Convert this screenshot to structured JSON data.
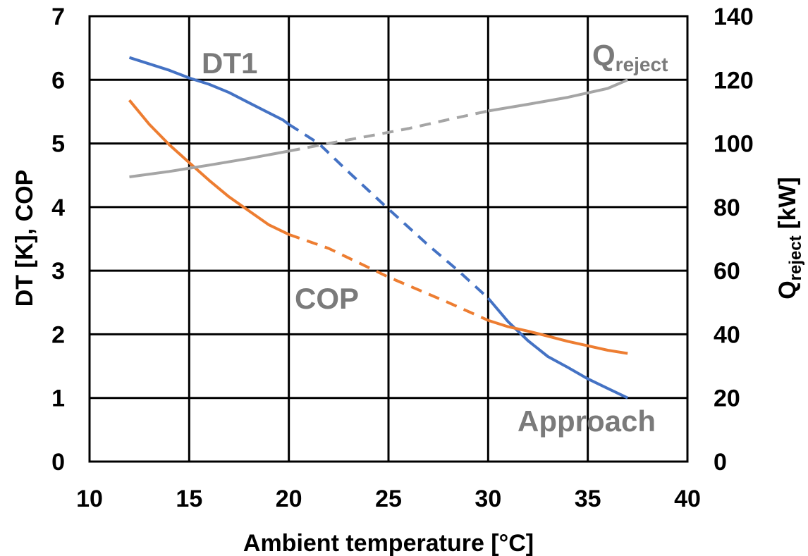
{
  "chart_data": {
    "type": "line",
    "xlabel": "Ambient temperature [°C]",
    "ylabel": "DT [K], COP",
    "y2label_main": "Q",
    "y2label_sub": "reject",
    "y2label_unit": " [kW]",
    "xlim": [
      10,
      40
    ],
    "ylim": [
      0,
      7
    ],
    "y2lim": [
      0,
      140
    ],
    "x_ticks": [
      10,
      15,
      20,
      25,
      30,
      35,
      40
    ],
    "y_ticks": [
      0,
      1,
      2,
      3,
      4,
      5,
      6,
      7
    ],
    "y2_ticks": [
      0,
      20,
      40,
      60,
      80,
      100,
      120,
      140
    ],
    "grid": true,
    "colors": {
      "blue": "#4472c4",
      "orange": "#ed7d31",
      "gray": "#a5a5a5",
      "annotation": "#7a7a7a"
    },
    "annotations": {
      "dt1": "DT1",
      "cop": "COP",
      "approach": "Approach",
      "qreject_main": "Q",
      "qreject_sub": "reject"
    },
    "series": [
      {
        "key": "dt1_approach",
        "axis": "left",
        "color": "#4472c4",
        "segments": [
          {
            "style": "solid",
            "points": [
              [
                12,
                6.35
              ],
              [
                13,
                6.25
              ],
              [
                14,
                6.15
              ],
              [
                15,
                6.03
              ],
              [
                16,
                5.93
              ],
              [
                17,
                5.8
              ],
              [
                18,
                5.64
              ],
              [
                19,
                5.48
              ],
              [
                19.7,
                5.37
              ],
              [
                20,
                5.3
              ]
            ]
          },
          {
            "style": "dashed",
            "points": [
              [
                20,
                5.3
              ],
              [
                21.5,
                5.0
              ],
              [
                23,
                4.55
              ],
              [
                25,
                3.97
              ],
              [
                27,
                3.4
              ],
              [
                28.5,
                3.0
              ],
              [
                30,
                2.57
              ]
            ]
          },
          {
            "style": "solid",
            "points": [
              [
                30,
                2.57
              ],
              [
                31,
                2.2
              ],
              [
                32,
                1.9
              ],
              [
                33,
                1.65
              ],
              [
                34,
                1.48
              ],
              [
                35,
                1.3
              ],
              [
                36,
                1.15
              ],
              [
                37,
                1.0
              ]
            ]
          }
        ]
      },
      {
        "key": "cop",
        "axis": "left",
        "color": "#ed7d31",
        "segments": [
          {
            "style": "solid",
            "points": [
              [
                12,
                5.68
              ],
              [
                13,
                5.3
              ],
              [
                14,
                4.98
              ],
              [
                15,
                4.7
              ],
              [
                16,
                4.42
              ],
              [
                17,
                4.16
              ],
              [
                18,
                3.94
              ],
              [
                19,
                3.72
              ],
              [
                20,
                3.57
              ]
            ]
          },
          {
            "style": "dashed",
            "points": [
              [
                20,
                3.57
              ],
              [
                22,
                3.35
              ],
              [
                25,
                2.9
              ],
              [
                28,
                2.5
              ],
              [
                30,
                2.22
              ]
            ]
          },
          {
            "style": "solid",
            "points": [
              [
                30,
                2.22
              ],
              [
                31,
                2.12
              ],
              [
                32,
                2.05
              ],
              [
                33,
                1.97
              ],
              [
                34,
                1.89
              ],
              [
                35,
                1.82
              ],
              [
                36,
                1.75
              ],
              [
                37,
                1.7
              ]
            ]
          }
        ]
      },
      {
        "key": "qreject",
        "axis": "right",
        "color": "#a5a5a5",
        "segments": [
          {
            "style": "solid",
            "points": [
              [
                12,
                89.5
              ],
              [
                14,
                91.2
              ],
              [
                16,
                93.2
              ],
              [
                18,
                95.3
              ],
              [
                20,
                97.6
              ]
            ]
          },
          {
            "style": "dashed",
            "points": [
              [
                20,
                97.6
              ],
              [
                22,
                100.0
              ],
              [
                24,
                102.3
              ],
              [
                26,
                104.7
              ],
              [
                28,
                107.5
              ],
              [
                30,
                110.2
              ]
            ]
          },
          {
            "style": "solid",
            "points": [
              [
                30,
                110.2
              ],
              [
                32,
                112.3
              ],
              [
                34,
                114.5
              ],
              [
                36,
                117.3
              ],
              [
                37,
                120.0
              ]
            ]
          }
        ]
      }
    ]
  }
}
